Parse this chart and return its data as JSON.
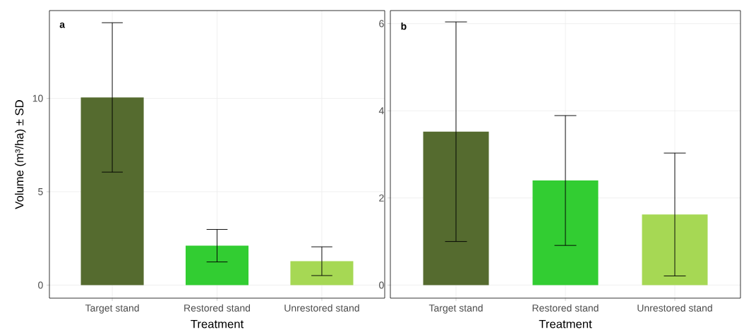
{
  "chart_data": [
    {
      "type": "bar",
      "categories": [
        "Target stand",
        "Restored stand",
        "Unrestored stand"
      ],
      "values": [
        10.05,
        2.11,
        1.28
      ],
      "errors": [
        4.0,
        0.87,
        0.77
      ],
      "colors": [
        "#556b2f",
        "#32cd32",
        "#a6d854"
      ],
      "ylim": [
        -0.7,
        14.7
      ],
      "yticks": [
        0,
        5,
        10
      ],
      "xlabel": "Treatment",
      "ylabel": "Volume (m³/ha) ± SD",
      "annotations": [
        "a"
      ],
      "grid": true
    },
    {
      "type": "bar",
      "categories": [
        "Target stand",
        "Restored stand",
        "Unrestored stand"
      ],
      "values": [
        3.52,
        2.4,
        1.62
      ],
      "errors": [
        2.52,
        1.49,
        1.41
      ],
      "colors": [
        "#556b2f",
        "#32cd32",
        "#a6d854"
      ],
      "ylim": [
        -0.3,
        6.3
      ],
      "yticks": [
        0,
        2,
        4,
        6
      ],
      "xlabel": "Treatment",
      "annotations": [
        "b"
      ],
      "grid": true
    }
  ]
}
